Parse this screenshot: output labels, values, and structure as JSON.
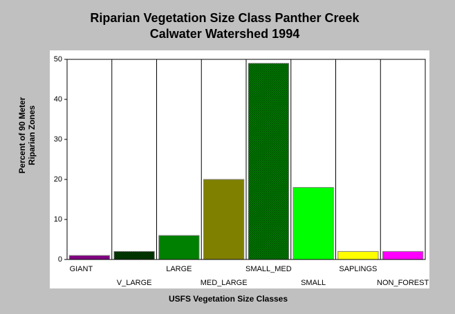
{
  "chart_data": {
    "type": "bar",
    "title": [
      "Riparian Vegetation Size Class Panther Creek",
      "Calwater Watershed 1994"
    ],
    "xlabel": "USFS Vegetation Size Classes",
    "ylabel": [
      "Percent of 90 Meter",
      "Riparian Zones"
    ],
    "categories": [
      "GIANT",
      "V_LARGE",
      "LARGE",
      "MED_LARGE",
      "SMALL_MED",
      "SMALL",
      "SAPLINGS",
      "NON_FOREST"
    ],
    "values": [
      1,
      2,
      6,
      20,
      49,
      18,
      2,
      2
    ],
    "colors": [
      "#800080",
      "#004000",
      "#008000",
      "#808000",
      "#008000",
      "#00ff00",
      "#ffff00",
      "#ff00ff"
    ],
    "hatched": [
      false,
      true,
      false,
      false,
      true,
      false,
      false,
      false
    ],
    "ylim": [
      0,
      50
    ],
    "yticks": [
      0,
      10,
      20,
      30,
      40,
      50
    ]
  }
}
